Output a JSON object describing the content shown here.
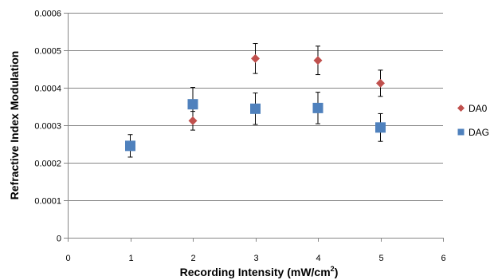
{
  "chart_data": {
    "type": "scatter",
    "xlabel": "Recording Intensity (mW/cm",
    "xlabel_sup": "2",
    "xlabel_end": ")",
    "ylabel": "Refractive Index Modulation",
    "xlim": [
      0,
      6
    ],
    "ylim": [
      0,
      0.0006
    ],
    "x_ticks": [
      "0",
      "1",
      "2",
      "3",
      "4",
      "5",
      "6"
    ],
    "y_ticks": [
      "0",
      "0.0001",
      "0.0002",
      "0.0003",
      "0.0004",
      "0.0005",
      "0.0006"
    ],
    "grid": "horizontal",
    "legend_position": "right",
    "series": [
      {
        "name": "DA0",
        "marker": "diamond",
        "color": "#c0504d",
        "x": [
          2,
          3,
          4,
          5
        ],
        "y": [
          0.000312,
          0.000478,
          0.000473,
          0.000412
        ],
        "error": [
          2.5e-05,
          4e-05,
          3.8e-05,
          3.5e-05
        ]
      },
      {
        "name": "DAG",
        "marker": "square",
        "color": "#4f81bd",
        "x": [
          1,
          2,
          3,
          4,
          5
        ],
        "y": [
          0.000245,
          0.000356,
          0.000344,
          0.000346,
          0.000294
        ],
        "error": [
          3e-05,
          4.5e-05,
          4.2e-05,
          4.2e-05,
          3.7e-05
        ]
      }
    ]
  }
}
